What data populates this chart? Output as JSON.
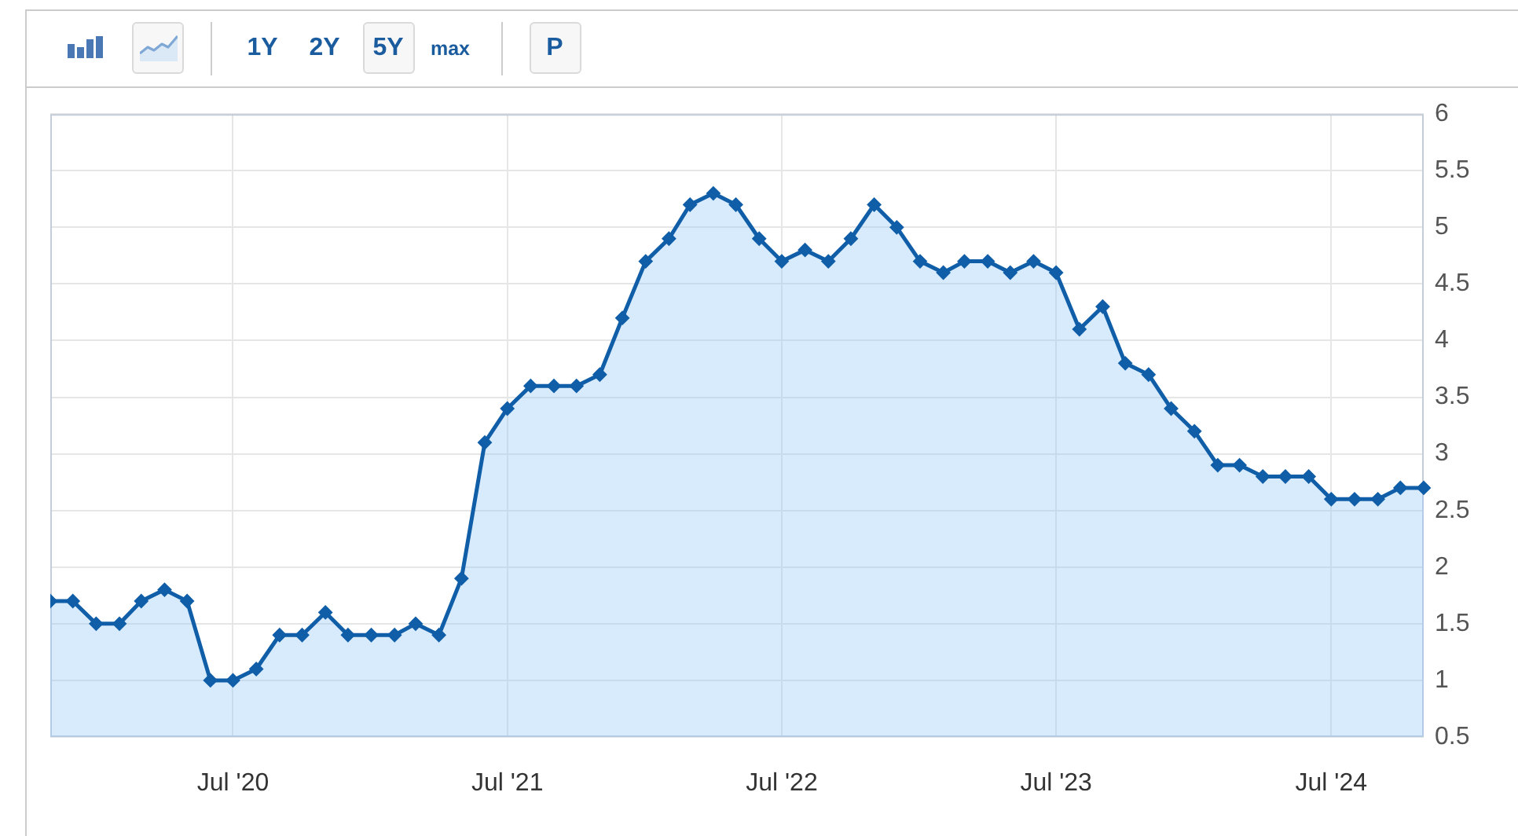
{
  "chart_data": {
    "type": "area",
    "x": [
      "2019-11",
      "2019-12",
      "2020-01",
      "2020-02",
      "2020-03",
      "2020-04",
      "2020-05",
      "2020-06",
      "2020-07",
      "2020-08",
      "2020-09",
      "2020-10",
      "2020-11",
      "2020-12",
      "2021-01",
      "2021-02",
      "2021-03",
      "2021-04",
      "2021-05",
      "2021-06",
      "2021-07",
      "2021-08",
      "2021-09",
      "2021-10",
      "2021-11",
      "2021-12",
      "2022-01",
      "2022-02",
      "2022-03",
      "2022-04",
      "2022-05",
      "2022-06",
      "2022-07",
      "2022-08",
      "2022-09",
      "2022-10",
      "2022-11",
      "2022-12",
      "2023-01",
      "2023-02",
      "2023-03",
      "2023-04",
      "2023-05",
      "2023-06",
      "2023-07",
      "2023-08",
      "2023-09",
      "2023-10",
      "2023-11",
      "2023-12",
      "2024-01",
      "2024-02",
      "2024-03",
      "2024-04",
      "2024-05",
      "2024-06",
      "2024-07",
      "2024-08",
      "2024-09",
      "2024-10",
      "2024-11"
    ],
    "values": [
      1.7,
      1.7,
      1.5,
      1.5,
      1.7,
      1.8,
      1.7,
      1.0,
      1.0,
      1.1,
      1.4,
      1.4,
      1.6,
      1.4,
      1.4,
      1.4,
      1.5,
      1.4,
      1.9,
      3.1,
      3.4,
      3.6,
      3.6,
      3.6,
      3.7,
      4.2,
      4.7,
      4.9,
      5.2,
      5.3,
      5.2,
      4.9,
      4.7,
      4.8,
      4.7,
      4.9,
      5.2,
      5.0,
      4.7,
      4.6,
      4.7,
      4.7,
      4.6,
      4.7,
      4.6,
      4.1,
      4.3,
      3.8,
      3.7,
      3.4,
      3.2,
      2.9,
      2.9,
      2.8,
      2.8,
      2.8,
      2.6,
      2.6,
      2.6,
      2.7,
      2.7
    ],
    "color": "#105ea8",
    "xlim": [
      "2019-11",
      "2024-11"
    ],
    "xticks": [
      {
        "value": "2020-07",
        "label": "Jul '20"
      },
      {
        "value": "2021-07",
        "label": "Jul '21"
      },
      {
        "value": "2022-07",
        "label": "Jul '22"
      },
      {
        "value": "2023-07",
        "label": "Jul '23"
      },
      {
        "value": "2024-07",
        "label": "Jul '24"
      }
    ],
    "ylim": [
      0.5,
      6
    ],
    "yticks": [
      0.5,
      1,
      1.5,
      2,
      2.5,
      3,
      3.5,
      4,
      4.5,
      5,
      5.5,
      6
    ],
    "grid": true,
    "marker": "diamond",
    "annotations": [
      "1Y",
      "2Y",
      "5Y",
      "max",
      "P"
    ]
  }
}
